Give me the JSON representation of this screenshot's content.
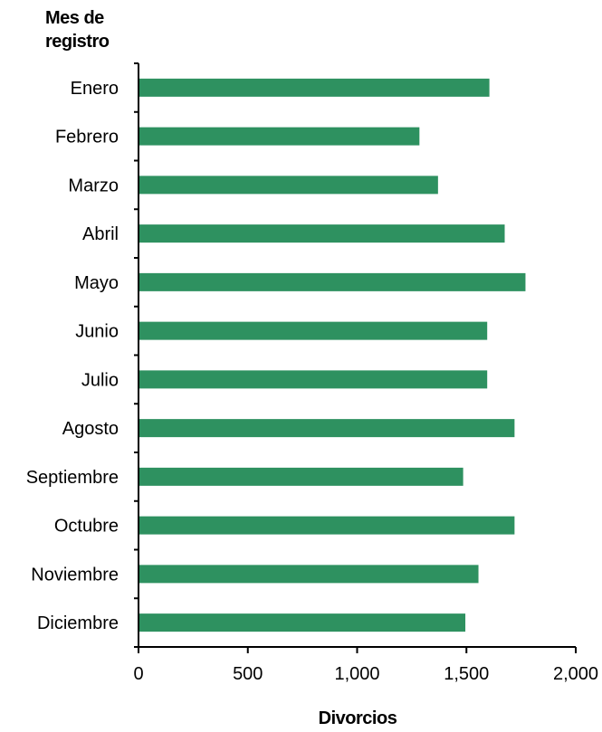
{
  "chart_data": {
    "type": "bar",
    "orientation": "horizontal",
    "ylabel_lines": [
      "Mes de",
      "registro"
    ],
    "xlabel": "Divorcios",
    "categories": [
      "Enero",
      "Febrero",
      "Marzo",
      "Abril",
      "Mayo",
      "Junio",
      "Julio",
      "Agosto",
      "Septiembre",
      "Octubre",
      "Noviembre",
      "Diciembre"
    ],
    "values": [
      1605,
      1285,
      1370,
      1675,
      1770,
      1595,
      1595,
      1720,
      1485,
      1720,
      1555,
      1495
    ],
    "xlim": [
      0,
      2000
    ],
    "xticks": [
      0,
      500,
      1000,
      1500,
      2000
    ],
    "xtick_labels": [
      "0",
      "500",
      "1,000",
      "1,500",
      "2,000"
    ],
    "grid": false,
    "legend": "none",
    "bar_color": "#2e9160"
  }
}
